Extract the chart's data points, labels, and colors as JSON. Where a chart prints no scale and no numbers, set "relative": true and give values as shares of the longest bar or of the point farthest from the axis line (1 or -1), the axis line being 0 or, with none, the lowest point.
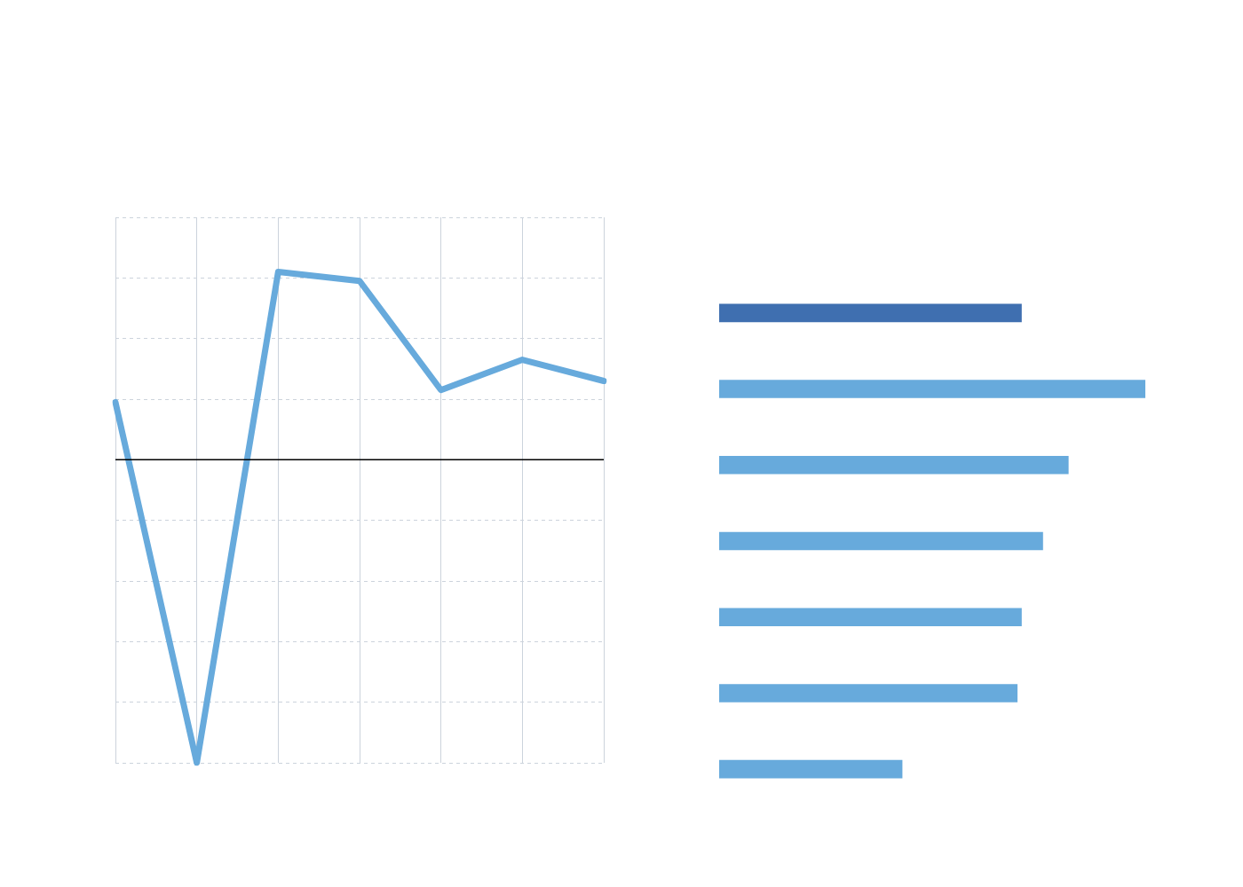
{
  "chart_data": [
    {
      "type": "line",
      "relative": true,
      "categories": [
        null,
        null,
        null,
        null,
        null,
        null,
        null
      ],
      "grid": true,
      "ref_lines": [
        {
          "axis": "y",
          "value": 0,
          "color": "#000000"
        }
      ],
      "series": [
        {
          "color": "#67aadc",
          "values": [
            0.19,
            -1,
            0.62,
            0.59,
            0.23,
            0.33,
            0.26
          ]
        }
      ]
    },
    {
      "type": "bar",
      "orientation": "horizontal",
      "relative": true,
      "categories": [
        null,
        null,
        null,
        null,
        null,
        null,
        null
      ],
      "values": [
        0.71,
        1,
        0.82,
        0.76,
        0.71,
        0.7,
        0.43
      ],
      "colors": [
        "#3f6fb0",
        "#67aadc",
        "#67aadc",
        "#67aadc",
        "#67aadc",
        "#67aadc",
        "#67aadc"
      ]
    }
  ]
}
